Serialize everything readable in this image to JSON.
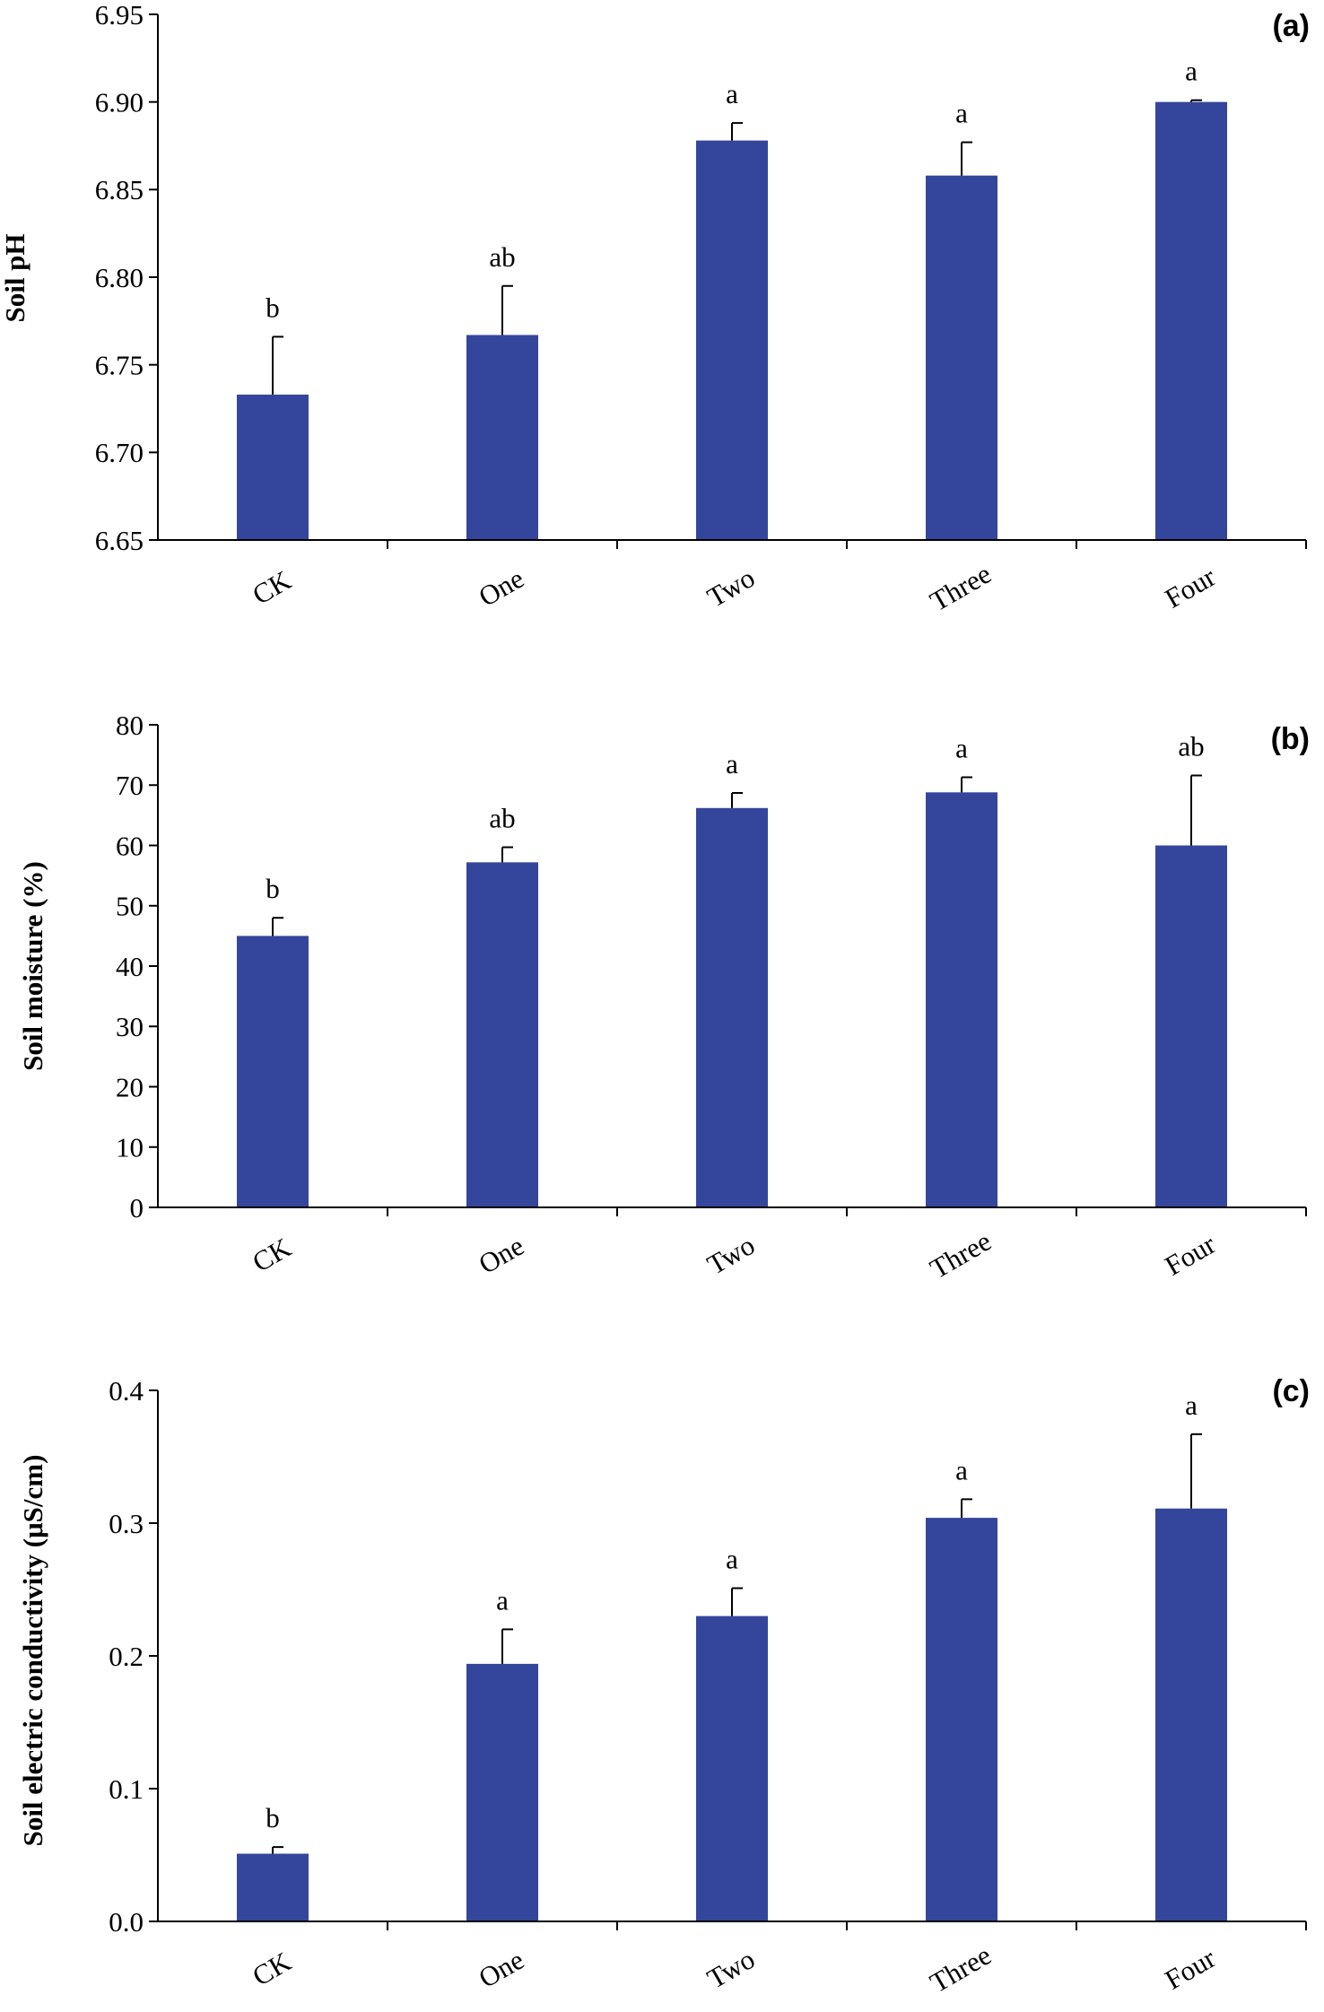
{
  "colors": {
    "bar": "#34469c",
    "axis": "#000000",
    "text": "#000000"
  },
  "chart_data": [
    {
      "type": "bar",
      "panel_label": "(a)",
      "ylabel": "Soil pH",
      "ylim": [
        6.65,
        6.95
      ],
      "yticks": [
        "6.65",
        "6.70",
        "6.75",
        "6.80",
        "6.85",
        "6.90",
        "6.95"
      ],
      "categories": [
        "CK",
        "One",
        "Two",
        "Three",
        "Four"
      ],
      "values": [
        6.733,
        6.767,
        6.878,
        6.858,
        6.9
      ],
      "errors": [
        0.033,
        0.028,
        0.01,
        0.019,
        0.001
      ],
      "significance": [
        "b",
        "ab",
        "a",
        "a",
        "a"
      ],
      "grid": false,
      "legend": "none"
    },
    {
      "type": "bar",
      "panel_label": "(b)",
      "ylabel": "Soil moisture (%)",
      "ylim": [
        0,
        80
      ],
      "yticks": [
        "0",
        "10",
        "20",
        "30",
        "40",
        "50",
        "60",
        "70",
        "80"
      ],
      "categories": [
        "CK",
        "One",
        "Two",
        "Three",
        "Four"
      ],
      "values": [
        45,
        57.2,
        66.2,
        68.8,
        60
      ],
      "errors": [
        3.0,
        2.5,
        2.5,
        2.5,
        11.6
      ],
      "significance": [
        "b",
        "ab",
        "a",
        "a",
        "ab"
      ],
      "grid": false,
      "legend": "none"
    },
    {
      "type": "bar",
      "panel_label": "(c)",
      "ylabel": "Soil electric conductivity (μS/cm)",
      "ylim": [
        0,
        0.4
      ],
      "yticks": [
        "0.0",
        "0.1",
        "0.2",
        "0.3",
        "0.4"
      ],
      "categories": [
        "CK",
        "One",
        "Two",
        "Three",
        "Four"
      ],
      "values": [
        0.051,
        0.194,
        0.23,
        0.304,
        0.311
      ],
      "errors": [
        0.005,
        0.026,
        0.021,
        0.014,
        0.056
      ],
      "significance": [
        "b",
        "a",
        "a",
        "a",
        "a"
      ],
      "grid": false,
      "legend": "none"
    }
  ]
}
